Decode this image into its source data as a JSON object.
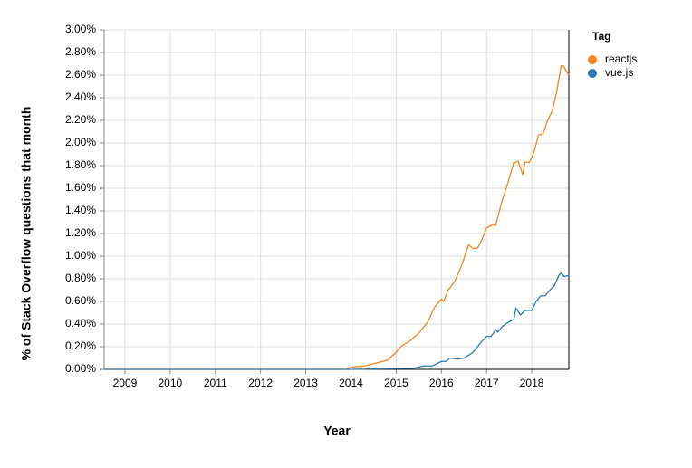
{
  "chart_data": {
    "type": "line",
    "x_label": "Year",
    "y_label": "% of Stack Overflow questions that month",
    "legend_title": "Tag",
    "legend_position": "top-right",
    "grid": true,
    "xlim": [
      2008.54,
      2018.82
    ],
    "xticks": [
      2009,
      2010,
      2011,
      2012,
      2013,
      2014,
      2015,
      2016,
      2017,
      2018
    ],
    "ylim": [
      0,
      3
    ],
    "yticks": [
      {
        "value": 0,
        "label": "0.00%"
      },
      {
        "value": 0.2,
        "label": "0.20%"
      },
      {
        "value": 0.4,
        "label": "0.40%"
      },
      {
        "value": 0.6,
        "label": "0.60%"
      },
      {
        "value": 0.8,
        "label": "0.80%"
      },
      {
        "value": 1,
        "label": "1.00%"
      },
      {
        "value": 1.2,
        "label": "1.20%"
      },
      {
        "value": 1.4,
        "label": "1.40%"
      },
      {
        "value": 1.6,
        "label": "1.60%"
      },
      {
        "value": 1.8,
        "label": "1.80%"
      },
      {
        "value": 2,
        "label": "2.00%"
      },
      {
        "value": 2.2,
        "label": "2.20%"
      },
      {
        "value": 2.4,
        "label": "2.40%"
      },
      {
        "value": 2.6,
        "label": "2.60%"
      },
      {
        "value": 2.8,
        "label": "2.80%"
      },
      {
        "value": 3,
        "label": "3.00%"
      }
    ],
    "series": [
      {
        "name": "reactjs",
        "color": "#f58518",
        "x": [
          2008.54,
          2013.9,
          2014.0,
          2014.3,
          2014.5,
          2014.8,
          2015.0,
          2015.1,
          2015.3,
          2015.5,
          2015.7,
          2015.85,
          2016.0,
          2016.05,
          2016.15,
          2016.3,
          2016.45,
          2016.6,
          2016.7,
          2016.8,
          2016.9,
          2017.0,
          2017.15,
          2017.2,
          2017.35,
          2017.45,
          2017.6,
          2017.7,
          2017.8,
          2017.85,
          2017.95,
          2018.05,
          2018.15,
          2018.25,
          2018.35,
          2018.45,
          2018.55,
          2018.65,
          2018.7,
          2018.82
        ],
        "values": [
          0,
          0,
          0.02,
          0.03,
          0.05,
          0.08,
          0.15,
          0.2,
          0.25,
          0.32,
          0.42,
          0.55,
          0.62,
          0.6,
          0.7,
          0.78,
          0.92,
          1.1,
          1.07,
          1.07,
          1.15,
          1.25,
          1.28,
          1.27,
          1.5,
          1.62,
          1.82,
          1.84,
          1.72,
          1.83,
          1.83,
          1.92,
          2.07,
          2.08,
          2.2,
          2.28,
          2.45,
          2.68,
          2.68,
          2.6
        ]
      },
      {
        "name": "vue.js",
        "color": "#2a78b0",
        "x": [
          2008.54,
          2014.0,
          2015.4,
          2015.6,
          2015.8,
          2016.0,
          2016.1,
          2016.2,
          2016.35,
          2016.5,
          2016.7,
          2016.9,
          2017.0,
          2017.1,
          2017.2,
          2017.25,
          2017.35,
          2017.5,
          2017.6,
          2017.65,
          2017.75,
          2017.85,
          2018.0,
          2018.1,
          2018.2,
          2018.3,
          2018.4,
          2018.5,
          2018.6,
          2018.65,
          2018.72,
          2018.82
        ],
        "values": [
          0,
          0,
          0.01,
          0.03,
          0.03,
          0.07,
          0.07,
          0.1,
          0.09,
          0.1,
          0.15,
          0.25,
          0.29,
          0.29,
          0.35,
          0.33,
          0.38,
          0.42,
          0.44,
          0.54,
          0.48,
          0.52,
          0.52,
          0.6,
          0.65,
          0.65,
          0.7,
          0.74,
          0.83,
          0.85,
          0.82,
          0.83
        ]
      }
    ]
  }
}
